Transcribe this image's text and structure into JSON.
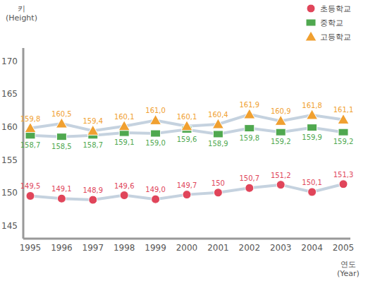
{
  "chart_data": {
    "type": "line",
    "y_label": "키 (Height)",
    "x_label": "연도 (Year)",
    "categories": [
      "1995",
      "1996",
      "1997",
      "1998",
      "1999",
      "2000",
      "2001",
      "2002",
      "2003",
      "2004",
      "2005"
    ],
    "series": [
      {
        "name": "초등학교",
        "color": "#e0455a",
        "marker": "circle",
        "values": [
          149.5,
          149.1,
          148.9,
          149.6,
          149.0,
          149.7,
          150,
          150.7,
          151.2,
          150.1,
          151.3
        ],
        "value_labels": [
          "149,5",
          "149,1",
          "148,9",
          "149,6",
          "149,0",
          "149,7",
          "150",
          "150,7",
          "151,2",
          "150,1",
          "151,3"
        ]
      },
      {
        "name": "중학교",
        "color": "#4fa84f",
        "marker": "square",
        "values": [
          158.7,
          158.5,
          158.7,
          159.1,
          159.0,
          159.6,
          158.9,
          159.8,
          159.2,
          159.9,
          159.2
        ],
        "value_labels": [
          "158,7",
          "158,5",
          "158,7",
          "159,1",
          "159,0",
          "159,6",
          "158,9",
          "159,8",
          "159,2",
          "159,9",
          "159,2"
        ]
      },
      {
        "name": "고등학교",
        "color": "#f0a030",
        "marker": "triangle",
        "values": [
          159.8,
          160.5,
          159.4,
          160.1,
          161.0,
          160.1,
          160.4,
          161.9,
          160.9,
          161.8,
          161.1
        ],
        "value_labels": [
          "159,8",
          "160,5",
          "159,4",
          "160,1",
          "161,0",
          "160,1",
          "160,4",
          "161,9",
          "160,9",
          "161,8",
          "161,1"
        ]
      }
    ],
    "ylim": [
      143,
      172
    ],
    "yticks": [
      145,
      150,
      155,
      160,
      165,
      170
    ],
    "grid": false,
    "data_labels": true,
    "legend": "top-right"
  }
}
